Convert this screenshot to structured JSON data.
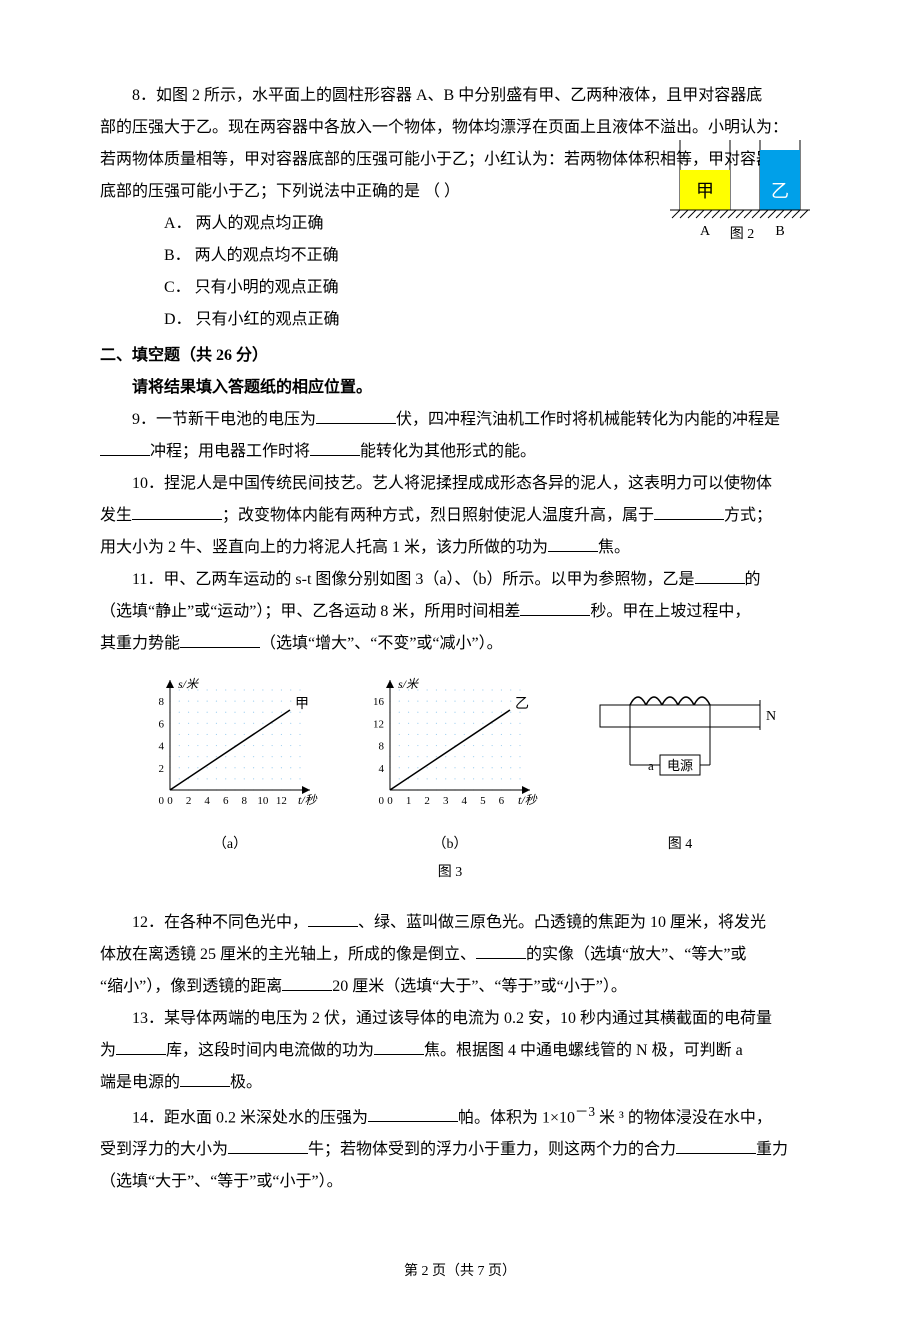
{
  "q8": {
    "stem_l1": "8．如图 2 所示，水平面上的圆柱形容器 A、B 中分别盛有甲、乙两种液体，且甲对容器底",
    "stem_l2": "部的压强大于乙。现在两容器中各放入一个物体，物体均漂浮在页面上且液体不溢出。小明认为：",
    "stem_l3": "若两物体质量相等，甲对容器底部的压强可能小于乙；小红认为：若两物体体积相等，甲对容器",
    "stem_l4": "底部的压强可能小于乙；下列说法中正确的是  （        ）",
    "optA": "A．  两人的观点均正确",
    "optB": "B．  两人的观点均不正确",
    "optC": "C．  只有小明的观点正确",
    "optD": "D．  只有小红的观点正确",
    "fig": {
      "labelA": "甲",
      "labelB": "乙",
      "nameA": "A",
      "nameB": "B",
      "caption": "图 2",
      "colorA": "#ffff00",
      "colorB": "#00a0e9",
      "ground_hatch": "#000",
      "liqA_h": 40,
      "liqB_h": 60,
      "cupA_w": 50,
      "cupB_w": 40,
      "cup_h": 70
    }
  },
  "section2": "二、填空题（共 26 分）",
  "section2_sub": "请将结果填入答题纸的相应位置。",
  "q9_a": "9．一节新干电池的电压为",
  "q9_b": "伏，四冲程汽油机工作时将机械能转化为内能的冲程是",
  "q9_c": "冲程；用电器工作时将",
  "q9_d": "能转化为其他形式的能。",
  "q10_a": "10．捏泥人是中国传统民间技艺。艺人将泥揉捏成成形态各异的泥人，这表明力可以使物体",
  "q10_b": "发生",
  "q10_c": "；改变物体内能有两种方式，烈日照射使泥人温度升高，属于",
  "q10_d": "方式；",
  "q10_e": "用大小为 2 牛、竖直向上的力将泥人托高 1 米，该力所做的功为",
  "q10_f": "焦。",
  "q11_a": "11．甲、乙两车运动的 s-t 图像分别如图 3（a）、（b）所示。以甲为参照物，乙是",
  "q11_b": "的",
  "q11_c": "（选填“静止”或“运动”）；甲、乙各运动 8 米，所用时间相差",
  "q11_d": "秒。甲在上坡过程中，",
  "q11_e": "其重力势能",
  "q11_f": "（选填“增大”、“不变”或“减小”）。",
  "fig3": {
    "chartA": {
      "type": "line",
      "title": "甲",
      "x_ticks": [
        0,
        2,
        4,
        6,
        8,
        10,
        12
      ],
      "y_ticks": [
        0,
        2,
        4,
        6,
        8
      ],
      "xlim": [
        0,
        14
      ],
      "ylim": [
        0,
        9
      ],
      "x_label": "t/秒",
      "y_label": "s/米",
      "line_color": "#000",
      "grid_color": "#9fcfef",
      "sub": "（a）"
    },
    "chartB": {
      "type": "line",
      "title": "乙",
      "x_ticks": [
        0,
        1,
        2,
        3,
        4,
        5,
        6
      ],
      "y_ticks": [
        0,
        4,
        8,
        12,
        16
      ],
      "xlim": [
        0,
        7
      ],
      "ylim": [
        0,
        18
      ],
      "x_label": "t/秒",
      "y_label": "s/米",
      "line_color": "#000",
      "grid_color": "#9fcfef",
      "sub": "（b）"
    },
    "caption": "图 3"
  },
  "fig4": {
    "caption": "图 4",
    "N": "N",
    "a": "a",
    "ps": "电源",
    "coil_color": "#000",
    "box_color": "#000"
  },
  "q12_a": "12．在各种不同色光中，",
  "q12_b": "、绿、蓝叫做三原色光。凸透镜的焦距为 10 厘米，将发光",
  "q12_c": "体放在离透镜 25 厘米的主光轴上，所成的像是倒立、",
  "q12_d": "的实像（选填“放大”、“等大”或",
  "q12_e": "“缩小”），像到透镜的距离",
  "q12_f": "20 厘米（选填“大于”、“等于”或“小于”）。",
  "q13_a": "13．某导体两端的电压为 2 伏，通过该导体的电流为 0.2 安，10 秒内通过其横截面的电荷量",
  "q13_b": "为",
  "q13_c": "库，这段时间内电流做的功为",
  "q13_d": "焦。根据图 4 中通电螺线管的 N 极，可判断 a",
  "q13_e": "端是电源的",
  "q13_f": "极。",
  "q14_a": "14．距水面 0.2 米深处水的压强为",
  "q14_b": "帕。体积为 1×10",
  "q14_sup": "－3",
  "q14_b2": " 米 ³ 的物体浸没在水中，",
  "q14_c": "受到浮力的大小为",
  "q14_d": "牛；若物体受到的浮力小于重力，则这两个力的合力",
  "q14_e": "重力",
  "q14_f": "（选填“大于”、“等于”或“小于”）。",
  "footer": "第 2 页（共 7 页）"
}
